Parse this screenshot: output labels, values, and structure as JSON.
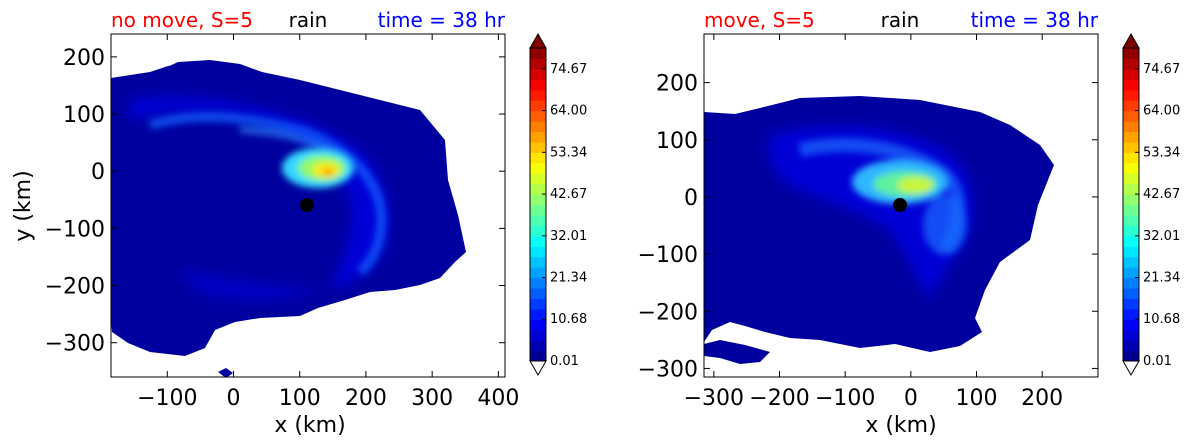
{
  "chart_data": [
    {
      "type": "heatmap",
      "title_left": "no move, S=5",
      "title_center": "rain",
      "title_right": "time = 38 hr",
      "title_left_color": "#ff0000",
      "title_center_color": "#000000",
      "title_right_color": "#0000ff",
      "xlabel": "x (km)",
      "ylabel": "y (km)",
      "xlim": [
        -185,
        410
      ],
      "ylim": [
        -360,
        240
      ],
      "xticks": [
        -100,
        0,
        100,
        200,
        300,
        400
      ],
      "xtick_labels": [
        "−100",
        "0",
        "100",
        "200",
        "300",
        "400"
      ],
      "yticks": [
        200,
        100,
        0,
        -100,
        -200,
        -300
      ],
      "ytick_labels": [
        "200",
        "100",
        "0",
        "−100",
        "−200",
        "−300"
      ],
      "center_marker": {
        "x": 108,
        "y": -62
      },
      "colorbar": {
        "vmin": 0.01,
        "vmax": 80.0,
        "ticks": [
          0.01,
          10.68,
          21.34,
          32.01,
          42.67,
          53.34,
          64.0,
          74.67
        ],
        "tick_labels": [
          "0.01",
          "10.68",
          "21.34",
          "32.01",
          "42.67",
          "53.34",
          "64.00",
          "74.67"
        ]
      },
      "peak_value": 58,
      "peak_location": {
        "x": 140,
        "y": 0
      }
    },
    {
      "type": "heatmap",
      "title_left": "move, S=5",
      "title_center": "rain",
      "title_right": "time = 38 hr",
      "title_left_color": "#ff0000",
      "title_center_color": "#000000",
      "title_right_color": "#0000ff",
      "xlabel": "x (km)",
      "ylabel": "",
      "xlim": [
        -315,
        285
      ],
      "ylim": [
        -315,
        285
      ],
      "xticks": [
        -300,
        -200,
        -100,
        0,
        100,
        200
      ],
      "xtick_labels": [
        "−300",
        "−200",
        "−100",
        "0",
        "100",
        "200"
      ],
      "yticks": [
        200,
        100,
        0,
        -100,
        -200,
        -300
      ],
      "ytick_labels": [
        "200",
        "100",
        "0",
        "−100",
        "−200",
        "−300"
      ],
      "center_marker": {
        "x": -15,
        "y": -15
      },
      "colorbar": {
        "vmin": 0.01,
        "vmax": 80.0,
        "ticks": [
          0.01,
          10.68,
          21.34,
          32.01,
          42.67,
          53.34,
          64.0,
          74.67
        ],
        "tick_labels": [
          "0.01",
          "10.68",
          "21.34",
          "32.01",
          "42.67",
          "53.34",
          "64.00",
          "74.67"
        ]
      },
      "peak_value": 45,
      "peak_location": {
        "x": 0,
        "y": 10
      }
    }
  ]
}
